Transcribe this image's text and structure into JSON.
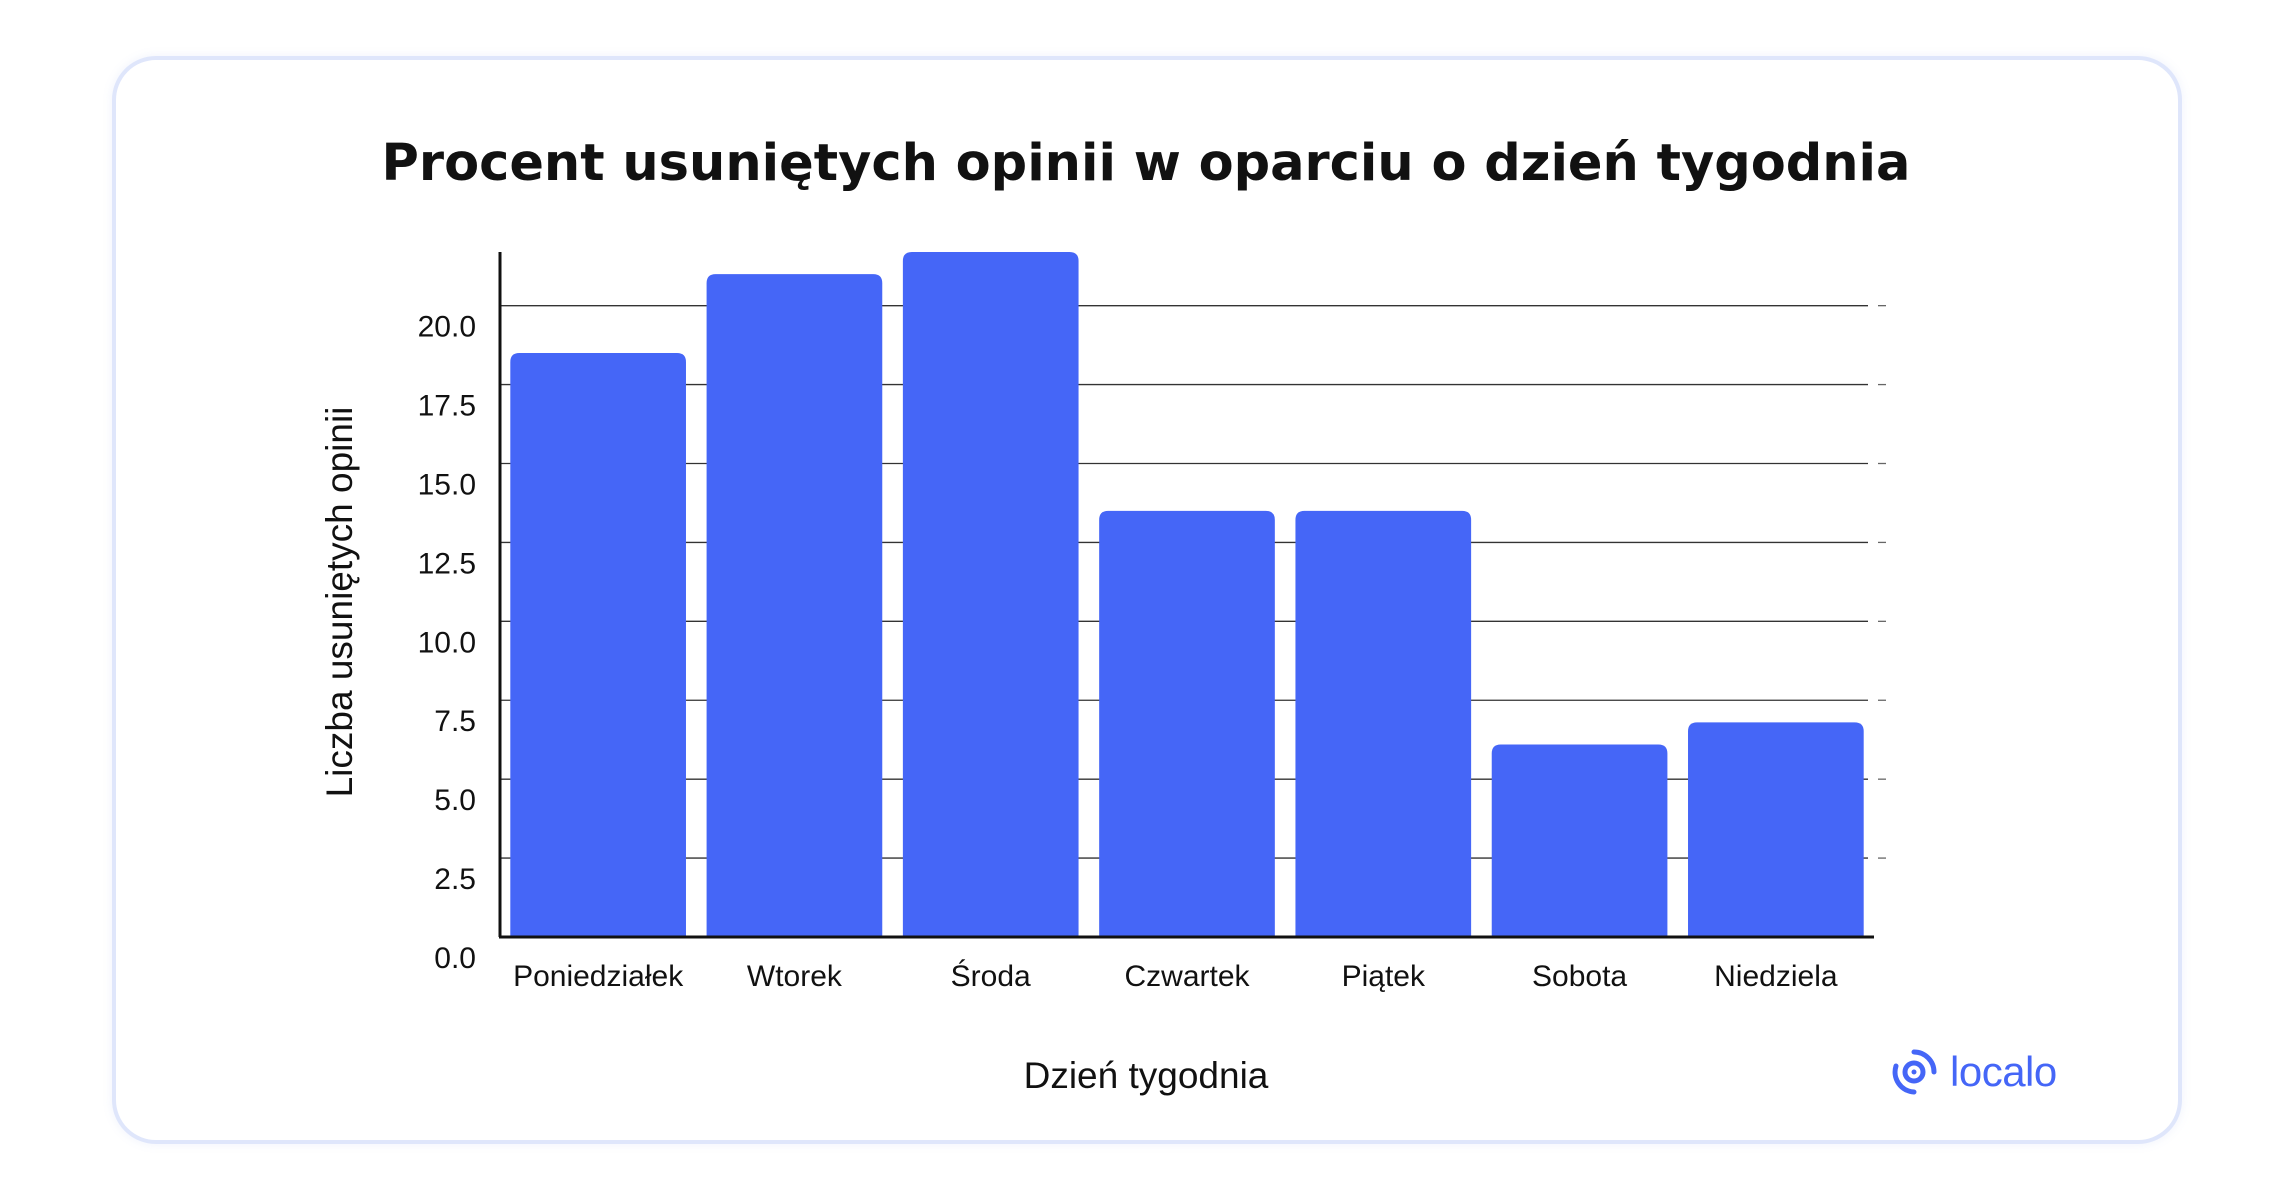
{
  "chart_data": {
    "type": "bar",
    "title": "Procent usuniętych opinii w oparciu o dzień tygodnia",
    "xlabel": "Dzień tygodnia",
    "ylabel": "Liczba usuniętych opinii",
    "categories": [
      "Poniedziałek",
      "Wtorek",
      "Środa",
      "Czwartek",
      "Piątek",
      "Sobota",
      "Niedziela"
    ],
    "values": [
      18.5,
      21.0,
      21.7,
      13.5,
      13.5,
      6.1,
      6.8
    ],
    "yticks": [
      "0.0",
      "2.5",
      "5.0",
      "7.5",
      "10.0",
      "12.5",
      "15.0",
      "17.5",
      "20.0"
    ],
    "ylim": [
      0,
      21.7
    ],
    "grid": true,
    "colors": {
      "bar": "#4566f7",
      "grid": "#333333",
      "text": "#111111"
    }
  },
  "brand": {
    "name": "localo",
    "color": "#4566f7",
    "icon": "localo-logo-icon"
  }
}
